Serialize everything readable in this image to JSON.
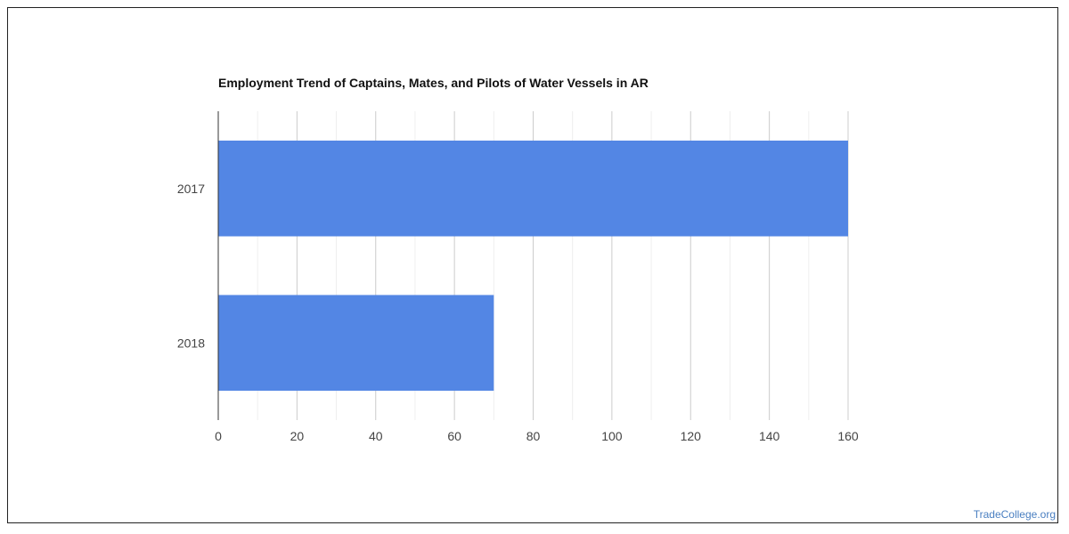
{
  "chart_data": {
    "type": "bar",
    "orientation": "horizontal",
    "title": "Employment Trend of Captains, Mates, and Pilots of Water Vessels in AR",
    "categories": [
      "2017",
      "2018"
    ],
    "values": [
      160,
      70
    ],
    "xlabel": "",
    "ylabel": "",
    "xlim": [
      0,
      160
    ],
    "x_ticks": [
      "0",
      "20",
      "40",
      "60",
      "80",
      "100",
      "120",
      "140",
      "160"
    ],
    "grid": true,
    "bar_color": "#5386e4",
    "grid_color": "#cccccc",
    "minor_grid_color": "#eeeeee",
    "axis_color": "#333333"
  },
  "watermark": "TradeCollege.org"
}
